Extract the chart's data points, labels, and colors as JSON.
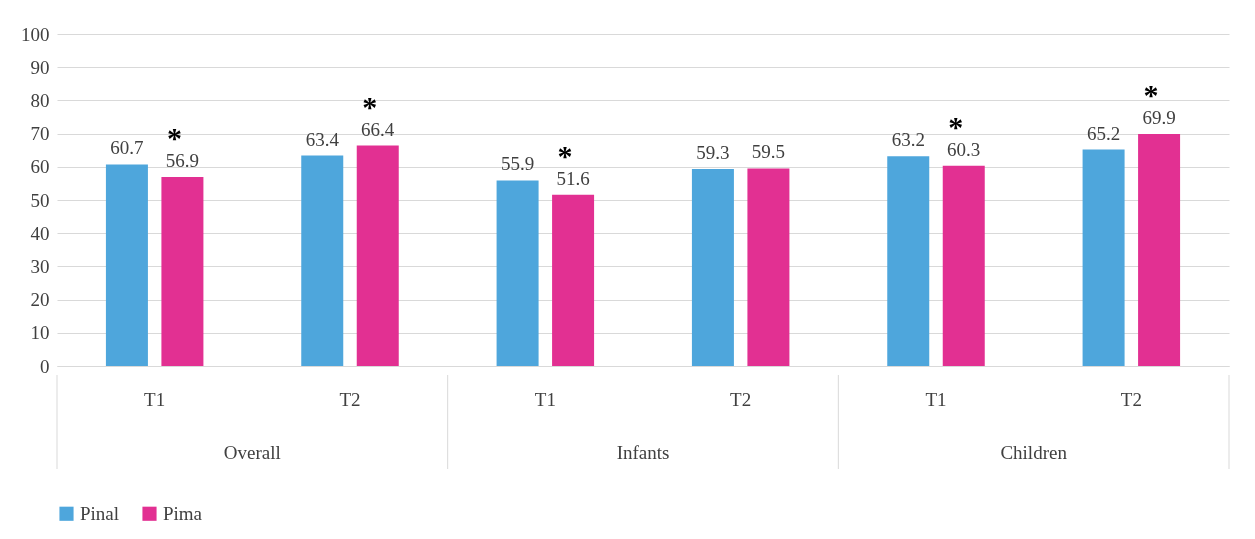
{
  "chart_data": {
    "type": "bar",
    "categories": [
      "T1",
      "T2",
      "T1",
      "T2",
      "T1",
      "T2"
    ],
    "series": [
      {
        "name": "Pinal",
        "color": "#4ea6dc",
        "values": [
          60.7,
          63.4,
          55.9,
          59.3,
          63.2,
          65.2
        ],
        "value_labels": [
          "60.7",
          "63.4",
          "55.9",
          "59.3",
          "63.2",
          "65.2"
        ]
      },
      {
        "name": "Pima",
        "color": "#e23092",
        "values": [
          56.9,
          66.4,
          51.6,
          59.5,
          60.3,
          69.9
        ],
        "value_labels": [
          "*\n56.9",
          "*\n66.4",
          "*\n51.6",
          "59.5",
          "*\n60.3",
          "*\n69.9"
        ]
      }
    ],
    "ylim": [
      0,
      100
    ],
    "yticks": [
      0,
      10,
      20,
      30,
      40,
      50,
      60,
      70,
      80,
      90,
      100
    ],
    "grid": "y",
    "legend": "bottom",
    "annotations": [
      "Overall",
      "Infants",
      "Children"
    ]
  }
}
